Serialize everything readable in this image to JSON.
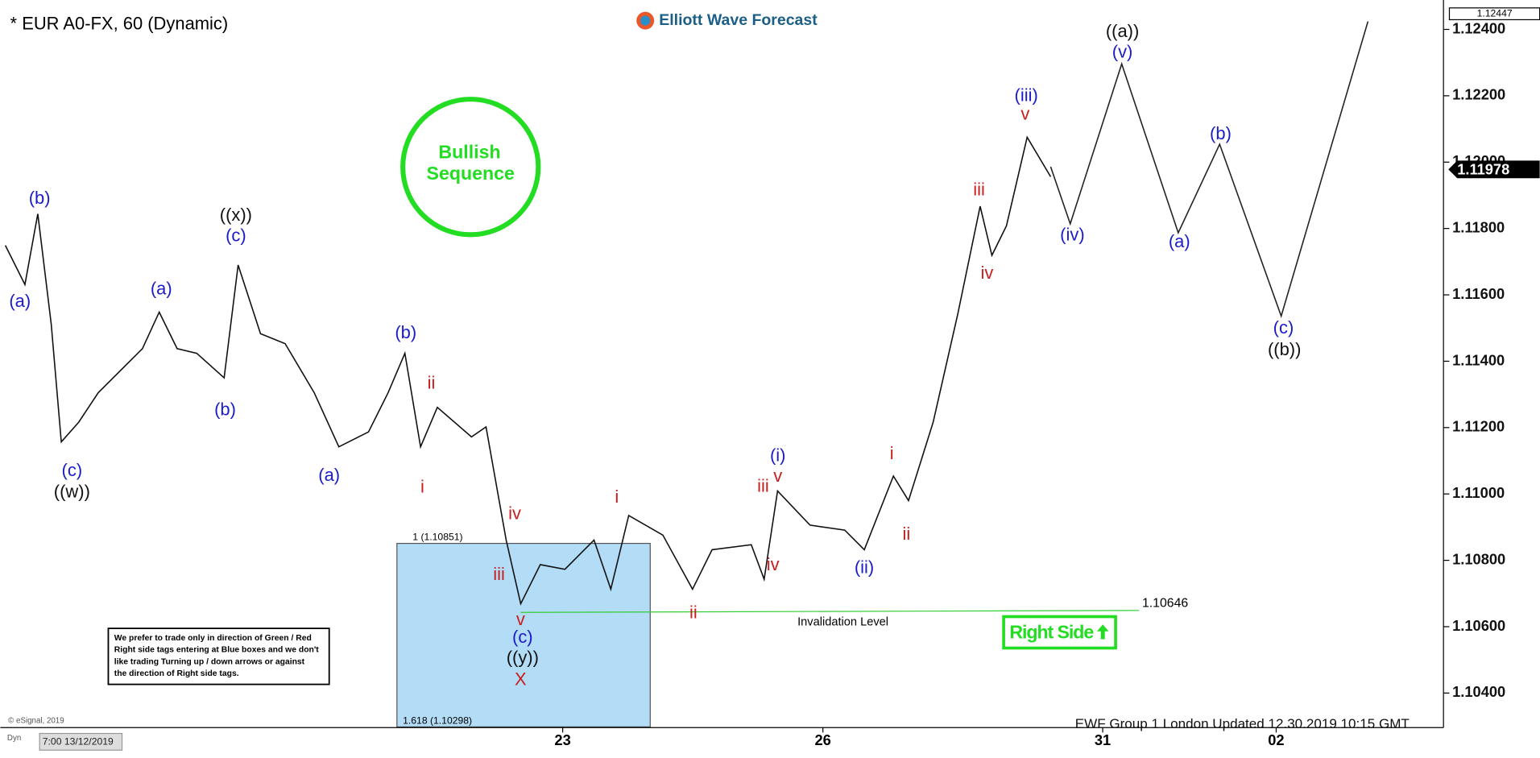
{
  "chart_data": {
    "type": "line",
    "title": "* EUR A0-FX, 60 (Dynamic)",
    "logo": "Elliott Wave Forecast",
    "xlim": [
      0,
      257.9
    ],
    "ylim": [
      1.10296,
      1.12459
    ],
    "xticks": [
      {
        "value": 100.5,
        "label": "23"
      },
      {
        "value": 147,
        "label": "26"
      },
      {
        "value": 197,
        "label": "31"
      },
      {
        "value": 228,
        "label": "02"
      }
    ],
    "yticks": [
      {
        "value": 1.104,
        "label": "1.10400"
      },
      {
        "value": 1.106,
        "label": "1.10600"
      },
      {
        "value": 1.108,
        "label": "1.10800"
      },
      {
        "value": 1.11,
        "label": "1.11000"
      },
      {
        "value": 1.112,
        "label": "1.11200"
      },
      {
        "value": 1.114,
        "label": "1.11400"
      },
      {
        "value": 1.116,
        "label": "1.11600"
      },
      {
        "value": 1.118,
        "label": "1.11800"
      },
      {
        "value": 1.12,
        "label": "1.12000"
      },
      {
        "value": 1.122,
        "label": "1.12200"
      },
      {
        "value": 1.124,
        "label": "1.12400"
      }
    ],
    "series": [
      {
        "color": "#111111",
        "x": [
          0.9,
          4.4,
          6.7,
          9.1,
          10.9,
          14.0,
          17.5,
          21.9,
          25.4,
          28.4,
          31.6,
          35.1,
          40.0,
          42.5,
          46.5,
          50.9,
          56.1,
          60.5,
          65.8,
          69.3,
          72.3,
          75.1,
          78.1,
          84.2,
          86.8,
          90.4,
          93.0,
          96.5,
          100.9,
          106.1,
          109.1,
          112.3,
          118.4,
          123.7,
          127.2,
          134.2,
          136.5,
          138.9,
          144.7,
          150.9,
          154.4,
          159.6,
          162.3,
          166.7,
          171.1,
          175.1,
          177.2,
          179.8,
          183.5,
          187.7
        ],
        "values": [
          1.11749,
          1.11631,
          1.11844,
          1.11512,
          1.11157,
          1.11216,
          1.11305,
          1.11379,
          1.11438,
          1.11548,
          1.11438,
          1.11424,
          1.1135,
          1.1169,
          1.11483,
          1.11453,
          1.11305,
          1.11142,
          1.11187,
          1.11305,
          1.11424,
          1.11142,
          1.11261,
          1.11172,
          1.11202,
          1.10861,
          1.10669,
          1.10787,
          1.10773,
          1.10861,
          1.10713,
          1.10935,
          1.10876,
          1.10713,
          1.10832,
          1.10847,
          1.10743,
          1.11009,
          1.10906,
          1.10891,
          1.10832,
          1.11054,
          1.1098,
          1.11216,
          1.11542,
          1.11867,
          1.11719,
          1.11808,
          1.12075,
          1.11956
        ]
      },
      {
        "color": "#222222",
        "x": [
          187.7,
          191.2,
          200.4,
          210.5,
          217.9,
          228.9,
          244.4
        ],
        "values": [
          1.11986,
          1.11814,
          1.12296,
          1.11787,
          1.12054,
          1.11536,
          1.12424
        ]
      }
    ],
    "annotations": [
      {
        "text": "(a)",
        "color": "#1b1bc8"
      },
      {
        "text": "(b)",
        "color": "#1b1bc8"
      },
      {
        "text": "(c)",
        "color": "#1b1bc8"
      },
      {
        "text": "((w))",
        "color": "#111111"
      },
      {
        "text": "(a)",
        "color": "#1b1bc8"
      },
      {
        "text": "(b)",
        "color": "#1b1bc8"
      },
      {
        "text": "((x))",
        "color": "#111111"
      },
      {
        "text": "(c)",
        "color": "#1b1bc8"
      },
      {
        "text": "(a)",
        "color": "#1b1bc8"
      },
      {
        "text": "(b)",
        "color": "#1b1bc8"
      },
      {
        "text": "ii",
        "color": "#c81e1e"
      },
      {
        "text": "i",
        "color": "#c81e1e"
      },
      {
        "text": "iv",
        "color": "#c81e1e"
      },
      {
        "text": "iii",
        "color": "#c81e1e"
      },
      {
        "text": "v",
        "color": "#c81e1e"
      },
      {
        "text": "(c)",
        "color": "#1b1bc8"
      },
      {
        "text": "((y))",
        "color": "#111111"
      },
      {
        "text": "X",
        "color": "#c81e1e"
      },
      {
        "text": "i",
        "color": "#c81e1e"
      },
      {
        "text": "ii",
        "color": "#c81e1e"
      },
      {
        "text": "iii",
        "color": "#c81e1e"
      },
      {
        "text": "(i)",
        "color": "#1b1bc8"
      },
      {
        "text": "v",
        "color": "#c81e1e"
      },
      {
        "text": "iv",
        "color": "#c81e1e"
      },
      {
        "text": "(ii)",
        "color": "#1b1bc8"
      },
      {
        "text": "i",
        "color": "#c81e1e"
      },
      {
        "text": "ii",
        "color": "#c81e1e"
      },
      {
        "text": "iii",
        "color": "#c81e1e"
      },
      {
        "text": "iv",
        "color": "#c81e1e"
      },
      {
        "text": "(iii)",
        "color": "#1b1bc8"
      },
      {
        "text": "v",
        "color": "#c81e1e"
      },
      {
        "text": "(iv)",
        "color": "#1b1bc8"
      },
      {
        "text": "((a))",
        "color": "#111111"
      },
      {
        "text": "(v)",
        "color": "#1b1bc8"
      },
      {
        "text": "(a)",
        "color": "#1b1bc8"
      },
      {
        "text": "(b)",
        "color": "#1b1bc8"
      },
      {
        "text": "(c)",
        "color": "#1b1bc8"
      },
      {
        "text": "((b))",
        "color": "#111111"
      }
    ],
    "fib_box": {
      "top": 1.10851,
      "bottom": 1.10298,
      "top_label": "1 (1.10851)",
      "bottom_label": "1.618 (1.10298)",
      "color": "#b3dcf7"
    },
    "invalidation": {
      "value": 1.10646,
      "label": "1.10646",
      "text": "Invalidation Level",
      "color": "#33cc33"
    },
    "last_price": {
      "value": 1.11978,
      "label": "1.11978"
    },
    "high_price": {
      "value": 1.12447,
      "label": "1.12447"
    },
    "badge": [
      "Bullish",
      "Sequence"
    ],
    "right_side": "Right Side",
    "note": [
      "We prefer to trade only in direction of Green / Red",
      "Right side tags entering at Blue boxes and we don't",
      "like trading Turning up / down arrows or against",
      "the direction of Right side tags."
    ],
    "footer": "EWF Group 1 London Updated 12.30.2019 10:15 GMT",
    "copyright": "© eSignal, 2019",
    "start_time": "7:00 13/12/2019",
    "dyn": "Dyn"
  }
}
